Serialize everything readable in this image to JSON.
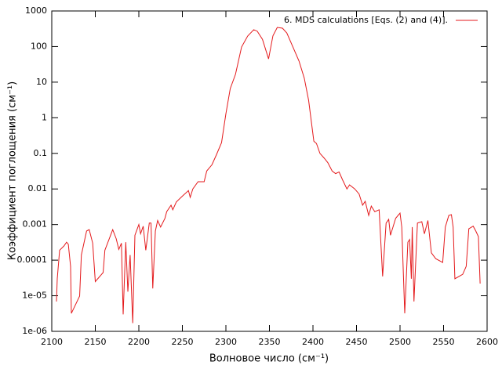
{
  "chart_data": {
    "type": "line",
    "xlabel": "Волновое число (см⁻¹)",
    "ylabel": "Коэффициент поглощения (см⁻¹)",
    "log_y": true,
    "legend": "top-right",
    "xlim": [
      2100,
      2600
    ],
    "xticks": [
      2100,
      2150,
      2200,
      2250,
      2300,
      2350,
      2400,
      2450,
      2500,
      2550,
      2600
    ],
    "ylim": [
      1e-06,
      1000
    ],
    "yticks": [
      {
        "value": 1e-06,
        "label": "1e-06"
      },
      {
        "value": 1e-05,
        "label": "1e-05"
      },
      0.0001,
      0.001,
      0.01,
      0.1,
      1,
      10,
      100,
      1000
    ],
    "x": [
      2105.4,
      2106.3,
      2109,
      2114,
      2117,
      2119,
      2121.6,
      2122.5,
      2132,
      2134,
      2140,
      2143,
      2147,
      2150,
      2159,
      2161,
      2170,
      2174,
      2177,
      2180,
      2182,
      2185,
      2187.4,
      2190,
      2193,
      2195.5,
      2200,
      2202,
      2205,
      2208,
      2212,
      2214,
      2216,
      2219,
      2221.6,
      2225,
      2230,
      2232,
      2237,
      2239,
      2243,
      2250,
      2257,
      2259,
      2262,
      2268,
      2275,
      2278,
      2284,
      2289,
      2295,
      2300,
      2305,
      2311,
      2318,
      2325,
      2332,
      2336,
      2342,
      2349,
      2354,
      2359,
      2365,
      2370,
      2377,
      2384,
      2390,
      2395,
      2401,
      2404,
      2408,
      2413,
      2417,
      2422,
      2426,
      2430,
      2434,
      2439,
      2442,
      2448,
      2453,
      2457,
      2460,
      2464,
      2467,
      2471,
      2476,
      2480,
      2484,
      2487,
      2489,
      2495,
      2500,
      2502,
      2505.4,
      2509,
      2511,
      2513,
      2514,
      2516,
      2520,
      2525,
      2528,
      2532,
      2536,
      2541,
      2549,
      2552,
      2556,
      2559,
      2561,
      2563,
      2572,
      2576,
      2579,
      2584,
      2587,
      2590,
      2592
    ],
    "series": [
      {
        "name": "6. MDS calculations [Eqs. (2) and (4)].",
        "color": "#e41a1c",
        "values": [
          6.9e-06,
          3e-05,
          0.00019,
          0.00025,
          0.00032,
          0.00028,
          6.7e-05,
          3.2e-06,
          9.8e-06,
          0.00014,
          0.00066,
          0.00072,
          0.0003,
          2.5e-05,
          4.5e-05,
          0.00019,
          0.00072,
          0.0004,
          0.0002,
          0.0003,
          3e-06,
          0.00032,
          1.3e-05,
          0.00014,
          1.7e-06,
          0.0005,
          0.001,
          0.00055,
          0.0009,
          0.00019,
          0.0011,
          0.0011,
          1.6e-05,
          0.00066,
          0.0013,
          0.00085,
          0.0015,
          0.0023,
          0.0035,
          0.0026,
          0.0043,
          0.0063,
          0.009,
          0.0058,
          0.01,
          0.016,
          0.016,
          0.032,
          0.048,
          0.09,
          0.2,
          1.3,
          6.6,
          16.6,
          97,
          197,
          297,
          270,
          160,
          45,
          200,
          345,
          328,
          240,
          97,
          39,
          13,
          3.1,
          0.22,
          0.19,
          0.1,
          0.073,
          0.055,
          0.032,
          0.027,
          0.03,
          0.018,
          0.01,
          0.013,
          0.01,
          0.0072,
          0.0035,
          0.0045,
          0.0018,
          0.0033,
          0.0023,
          0.0026,
          3.5e-05,
          0.0011,
          0.0014,
          0.0005,
          0.0015,
          0.0021,
          0.00085,
          3.2e-06,
          0.00032,
          0.00038,
          3e-05,
          0.00085,
          6.9e-06,
          0.0011,
          0.0012,
          0.00055,
          0.0013,
          0.00016,
          0.00011,
          8.6e-05,
          0.00085,
          0.0018,
          0.0019,
          0.00085,
          3e-05,
          4e-05,
          6.7e-05,
          0.00076,
          0.0009,
          0.00066,
          0.00046,
          2.2e-05
        ]
      }
    ]
  }
}
